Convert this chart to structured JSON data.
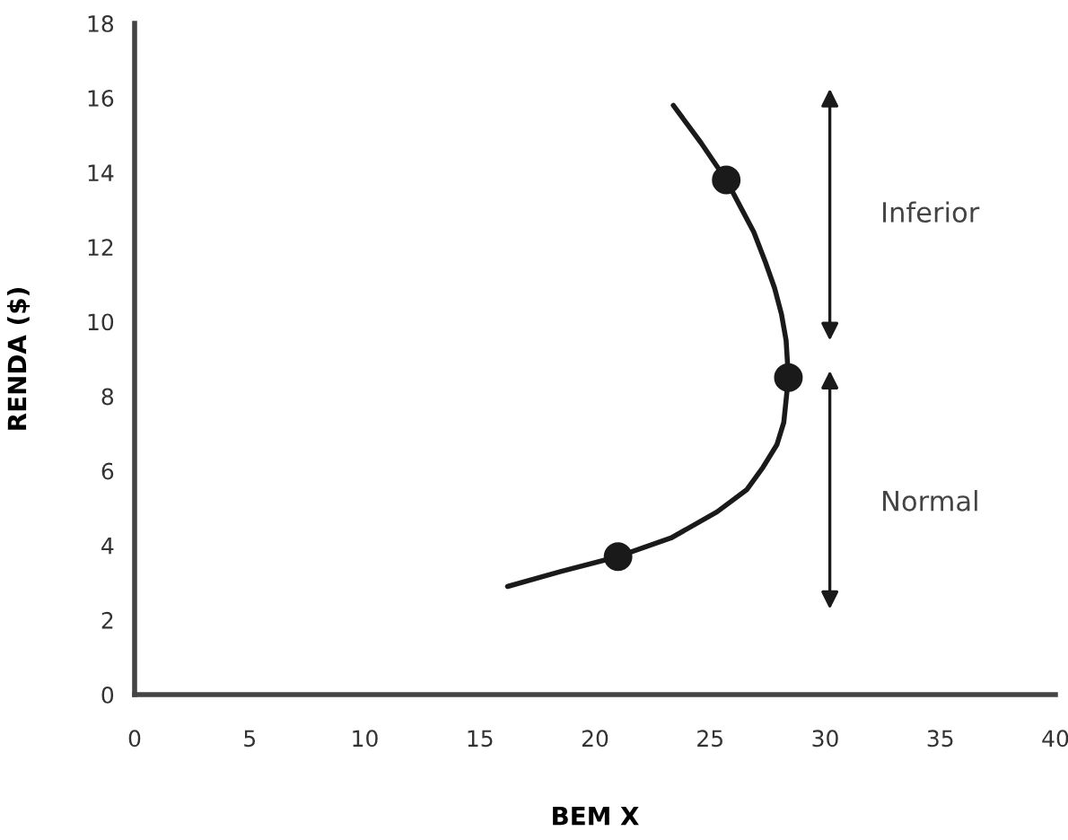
{
  "chart_data": {
    "type": "line",
    "xlabel": "BEM X",
    "ylabel": "RENDA ($)",
    "series": [
      {
        "color": "#1a1a1a",
        "marker": "none",
        "x": [
          16.2,
          18.5,
          21.0,
          23.3,
          25.3,
          26.6,
          27.3,
          27.9,
          28.2,
          28.4,
          28.3,
          28.1,
          27.8,
          27.4,
          26.9,
          26.3,
          25.7,
          24.6,
          23.4
        ],
        "values": [
          2.9,
          3.3,
          3.7,
          4.2,
          4.9,
          5.5,
          6.1,
          6.7,
          7.3,
          8.5,
          9.5,
          10.2,
          10.9,
          11.6,
          12.4,
          13.1,
          13.8,
          14.8,
          15.8
        ]
      },
      {
        "type": "scatter",
        "color": "#1a1a1a",
        "marker": "circle",
        "x": [
          21.0,
          28.4,
          25.7
        ],
        "values": [
          3.7,
          8.5,
          13.8
        ]
      }
    ],
    "xlim": [
      0,
      40
    ],
    "xticks": [
      0,
      5,
      10,
      15,
      20,
      25,
      30,
      35,
      40
    ],
    "ylim": [
      0,
      18
    ],
    "yticks": [
      0,
      2,
      4,
      6,
      8,
      10,
      12,
      14,
      16,
      18
    ],
    "grid": false,
    "legend": false,
    "annotations": [
      "Inferior",
      "Normal"
    ]
  }
}
